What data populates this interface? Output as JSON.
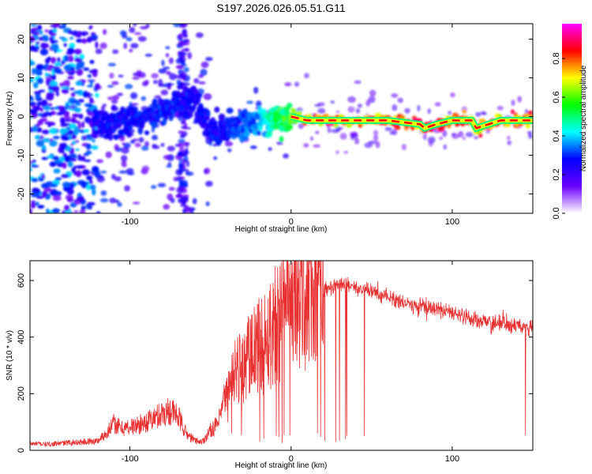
{
  "title": "S197.2026.026.05.51.G11",
  "chart_data": [
    {
      "type": "heatmap",
      "xlabel": "Height of straight line (km)",
      "ylabel": "Frequency (Hz)",
      "xlim": [
        -162,
        150
      ],
      "ylim": [
        -25,
        24
      ],
      "xticks": [
        -100,
        0,
        100
      ],
      "yticks": [
        -20,
        -10,
        0,
        10,
        20
      ],
      "colorbar": {
        "label": "Normalized spectral amplitude",
        "range": [
          0,
          0.98
        ],
        "ticks": [
          0.0,
          0.2,
          0.4,
          0.6,
          0.8
        ],
        "colormap": [
          "#ffffff",
          "#6a00ff",
          "#0000ff",
          "#00ffff",
          "#00ff00",
          "#ffff00",
          "#ff0000",
          "#ff00ff"
        ]
      },
      "ridge": {
        "x": [
          -120,
          -110,
          -100,
          -90,
          -80,
          -70,
          -60,
          -50,
          -40,
          -30,
          -20,
          -10,
          0,
          10,
          20,
          40,
          60,
          80,
          83,
          90,
          100,
          112,
          115,
          130,
          150
        ],
        "frequency": [
          -1,
          -2,
          -1,
          0,
          2,
          3,
          5,
          -3,
          -4,
          -2,
          -1,
          -1,
          0,
          -1,
          -1,
          -1,
          -1,
          -2,
          -3,
          -2,
          -1,
          -1,
          -3,
          -1,
          -1
        ],
        "amplitude": [
          0.28,
          0.3,
          0.3,
          0.3,
          0.32,
          0.3,
          0.28,
          0.3,
          0.3,
          0.35,
          0.4,
          0.55,
          0.65,
          0.85,
          0.9,
          0.88,
          0.9,
          0.92,
          0.92,
          0.9,
          0.88,
          0.85,
          0.85,
          0.88,
          0.85
        ]
      }
    },
    {
      "type": "line",
      "xlabel": "Height of straight line (km)",
      "ylabel": "SNR (10 * v/v)",
      "xlim": [
        -162,
        150
      ],
      "ylim": [
        0,
        670
      ],
      "xticks": [
        -100,
        0,
        100
      ],
      "yticks": [
        0,
        200,
        400,
        600
      ],
      "color": "#e83030",
      "series": [
        {
          "x": [
            -162,
            -150,
            -140,
            -130,
            -120,
            -115,
            -110,
            -105,
            -100,
            -95,
            -90,
            -85,
            -80,
            -75,
            -70,
            -65,
            -60,
            -55,
            -50,
            -45,
            -40,
            -35,
            -30,
            -25,
            -20,
            -15,
            -10,
            -5,
            0,
            5,
            10,
            15,
            20,
            25,
            30,
            35,
            40,
            50,
            60,
            70,
            80,
            90,
            100,
            110,
            115,
            120,
            130,
            140,
            150
          ],
          "values": [
            20,
            18,
            22,
            25,
            28,
            50,
            80,
            65,
            70,
            75,
            85,
            95,
            110,
            120,
            100,
            50,
            30,
            25,
            60,
            80,
            180,
            260,
            300,
            330,
            360,
            400,
            450,
            500,
            530,
            540,
            550,
            560,
            570,
            580,
            590,
            585,
            575,
            560,
            540,
            520,
            510,
            500,
            480,
            470,
            460,
            450,
            445,
            440,
            435
          ]
        }
      ]
    }
  ]
}
